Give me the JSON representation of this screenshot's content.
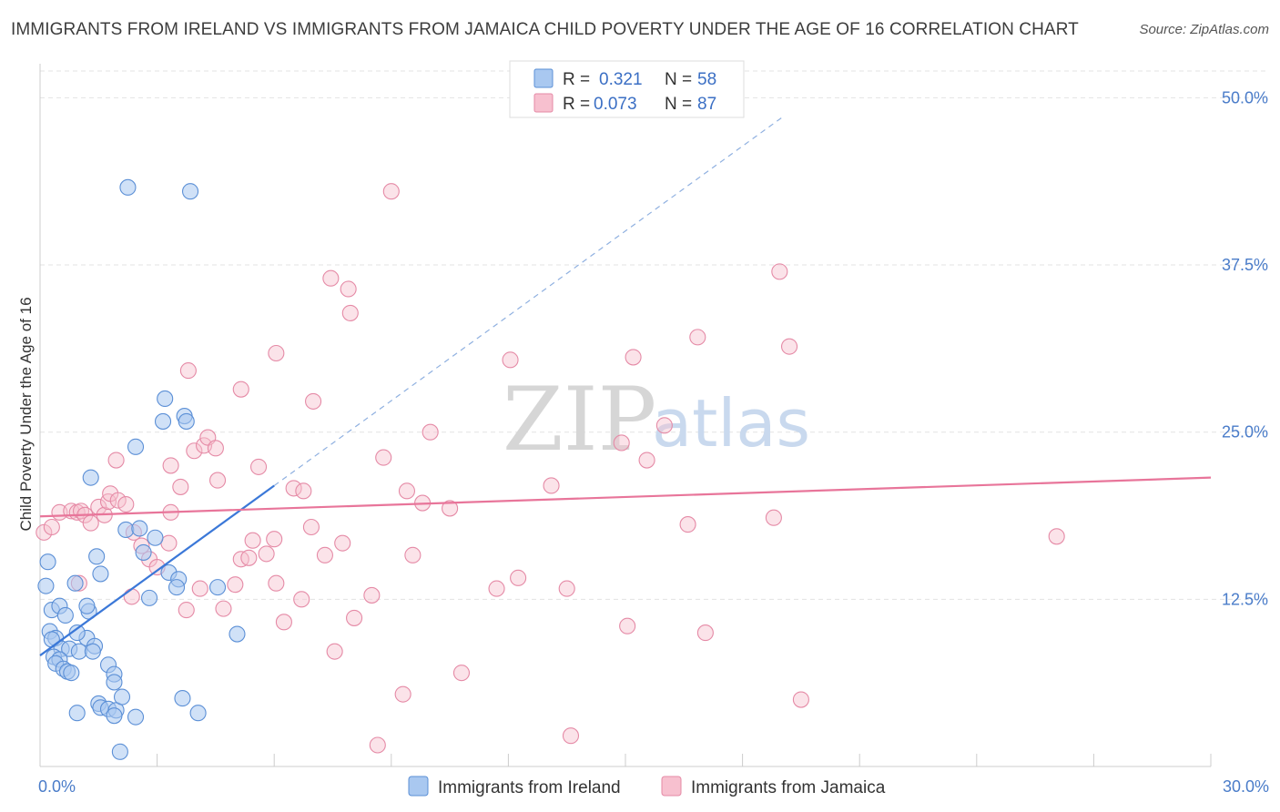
{
  "title": "IMMIGRANTS FROM IRELAND VS IMMIGRANTS FROM JAMAICA CHILD POVERTY UNDER THE AGE OF 16 CORRELATION CHART",
  "source": "Source: ZipAtlas.com",
  "watermark": {
    "zip": "ZIP",
    "atlas": "atlas"
  },
  "chart_data": {
    "type": "scatter",
    "title": "IMMIGRANTS FROM IRELAND VS IMMIGRANTS FROM JAMAICA CHILD POVERTY UNDER THE AGE OF 16 CORRELATION CHART",
    "xlabel": "",
    "ylabel": "Child Poverty Under the Age of 16",
    "xlim": [
      0,
      30
    ],
    "ylim": [
      0,
      52
    ],
    "x_tick_labels": {
      "min": "0.0%",
      "max": "30.0%"
    },
    "y_ticks": [
      {
        "value": 12.5,
        "label": "12.5%"
      },
      {
        "value": 25.0,
        "label": "25.0%"
      },
      {
        "value": 37.5,
        "label": "37.5%"
      },
      {
        "value": 50.0,
        "label": "50.0%"
      }
    ],
    "grid": true,
    "legend": [
      {
        "name": "Immigrants from Ireland",
        "r_label": "R =",
        "r": "0.321",
        "n_label": "N =",
        "n": "58",
        "fill": "#a9c8f0",
        "stroke": "#5b8fd6"
      },
      {
        "name": "Immigrants from Jamaica",
        "r_label": "R =",
        "r": "0.073",
        "n_label": "N =",
        "n": "87",
        "fill": "#f7c0cf",
        "stroke": "#e58aa6"
      }
    ],
    "series": [
      {
        "name": "Immigrants from Ireland",
        "color": "#3b78d8",
        "fill": "#a9c8f0",
        "trend": {
          "x0": 0.0,
          "y0": 8.3,
          "x1": 6.0,
          "y1": 21.0,
          "dash_to_x": 19.0,
          "dash_to_y": 48.5
        },
        "points": [
          [
            2.25,
            43.3
          ],
          [
            3.85,
            43.0
          ],
          [
            0.2,
            15.3
          ],
          [
            0.15,
            13.5
          ],
          [
            0.3,
            11.7
          ],
          [
            0.5,
            12.0
          ],
          [
            0.65,
            11.3
          ],
          [
            0.25,
            10.1
          ],
          [
            0.4,
            9.6
          ],
          [
            0.3,
            9.5
          ],
          [
            0.55,
            8.8
          ],
          [
            0.75,
            8.8
          ],
          [
            0.35,
            8.2
          ],
          [
            0.5,
            8.0
          ],
          [
            0.4,
            7.7
          ],
          [
            0.6,
            7.3
          ],
          [
            0.7,
            7.1
          ],
          [
            0.8,
            7.0
          ],
          [
            0.9,
            13.7
          ],
          [
            1.2,
            9.6
          ],
          [
            1.0,
            8.6
          ],
          [
            1.4,
            9.0
          ],
          [
            1.35,
            8.6
          ],
          [
            1.75,
            7.6
          ],
          [
            1.9,
            6.9
          ],
          [
            1.9,
            6.3
          ],
          [
            1.5,
            4.7
          ],
          [
            1.55,
            4.4
          ],
          [
            1.75,
            4.3
          ],
          [
            1.95,
            4.2
          ],
          [
            1.9,
            3.8
          ],
          [
            2.1,
            5.2
          ],
          [
            2.45,
            3.7
          ],
          [
            0.95,
            4.0
          ],
          [
            2.05,
            1.1
          ],
          [
            3.65,
            5.1
          ],
          [
            4.05,
            4.0
          ],
          [
            2.2,
            17.7
          ],
          [
            2.55,
            17.8
          ],
          [
            2.65,
            16.0
          ],
          [
            2.95,
            17.1
          ],
          [
            2.8,
            12.6
          ],
          [
            3.3,
            14.5
          ],
          [
            3.55,
            14.0
          ],
          [
            3.5,
            13.4
          ],
          [
            4.55,
            13.4
          ],
          [
            5.05,
            9.9
          ],
          [
            1.3,
            21.6
          ],
          [
            1.45,
            15.7
          ],
          [
            1.55,
            14.4
          ],
          [
            1.25,
            11.6
          ],
          [
            3.2,
            27.5
          ],
          [
            3.15,
            25.8
          ],
          [
            3.7,
            26.2
          ],
          [
            3.75,
            25.8
          ],
          [
            2.45,
            23.9
          ],
          [
            1.2,
            12.0
          ],
          [
            0.95,
            10.0
          ]
        ]
      },
      {
        "name": "Immigrants from Jamaica",
        "color": "#e8759a",
        "fill": "#f7c0cf",
        "trend": {
          "x0": 0.0,
          "y0": 18.7,
          "x1": 30.0,
          "y1": 21.6
        },
        "points": [
          [
            0.1,
            17.5
          ],
          [
            0.3,
            17.9
          ],
          [
            0.5,
            19.0
          ],
          [
            0.8,
            19.1
          ],
          [
            0.95,
            19.0
          ],
          [
            1.05,
            19.1
          ],
          [
            1.15,
            18.8
          ],
          [
            1.3,
            18.2
          ],
          [
            1.5,
            19.4
          ],
          [
            1.65,
            18.8
          ],
          [
            1.75,
            19.8
          ],
          [
            1.8,
            20.4
          ],
          [
            2.0,
            19.9
          ],
          [
            2.2,
            19.6
          ],
          [
            2.4,
            17.5
          ],
          [
            2.6,
            16.5
          ],
          [
            2.8,
            15.5
          ],
          [
            3.0,
            14.9
          ],
          [
            3.3,
            16.7
          ],
          [
            3.35,
            19.0
          ],
          [
            3.6,
            20.9
          ],
          [
            3.75,
            11.7
          ],
          [
            3.95,
            23.6
          ],
          [
            4.2,
            24.0
          ],
          [
            4.3,
            24.6
          ],
          [
            4.5,
            23.8
          ],
          [
            4.1,
            13.3
          ],
          [
            4.7,
            11.8
          ],
          [
            5.0,
            13.6
          ],
          [
            5.15,
            15.5
          ],
          [
            5.35,
            15.6
          ],
          [
            5.45,
            16.9
          ],
          [
            5.6,
            22.4
          ],
          [
            5.8,
            15.9
          ],
          [
            6.05,
            30.9
          ],
          [
            6.05,
            13.7
          ],
          [
            6.25,
            10.8
          ],
          [
            6.5,
            20.8
          ],
          [
            6.7,
            12.5
          ],
          [
            6.75,
            20.6
          ],
          [
            6.95,
            17.9
          ],
          [
            7.0,
            27.3
          ],
          [
            7.3,
            15.8
          ],
          [
            7.45,
            36.5
          ],
          [
            7.55,
            8.6
          ],
          [
            7.75,
            16.7
          ],
          [
            7.9,
            35.7
          ],
          [
            7.95,
            33.9
          ],
          [
            8.05,
            11.1
          ],
          [
            8.5,
            12.8
          ],
          [
            8.65,
            1.6
          ],
          [
            8.8,
            23.1
          ],
          [
            9.0,
            43.0
          ],
          [
            9.3,
            5.4
          ],
          [
            9.55,
            15.8
          ],
          [
            9.4,
            20.6
          ],
          [
            9.8,
            19.7
          ],
          [
            10.0,
            25.0
          ],
          [
            10.5,
            19.3
          ],
          [
            10.8,
            7.0
          ],
          [
            11.7,
            13.3
          ],
          [
            12.05,
            30.4
          ],
          [
            12.25,
            14.1
          ],
          [
            13.1,
            21.0
          ],
          [
            13.5,
            13.3
          ],
          [
            13.6,
            2.3
          ],
          [
            14.9,
            24.2
          ],
          [
            15.05,
            10.5
          ],
          [
            15.2,
            30.6
          ],
          [
            15.55,
            22.9
          ],
          [
            16.0,
            25.5
          ],
          [
            16.6,
            18.1
          ],
          [
            16.85,
            32.1
          ],
          [
            17.05,
            10.0
          ],
          [
            18.8,
            18.6
          ],
          [
            18.95,
            37.0
          ],
          [
            19.2,
            31.4
          ],
          [
            19.5,
            5.0
          ],
          [
            26.05,
            17.2
          ],
          [
            2.35,
            12.7
          ],
          [
            4.55,
            21.4
          ],
          [
            6.0,
            17.0
          ],
          [
            1.0,
            13.7
          ],
          [
            1.95,
            22.9
          ],
          [
            3.35,
            22.5
          ],
          [
            5.15,
            28.2
          ],
          [
            3.8,
            29.6
          ]
        ]
      }
    ]
  }
}
